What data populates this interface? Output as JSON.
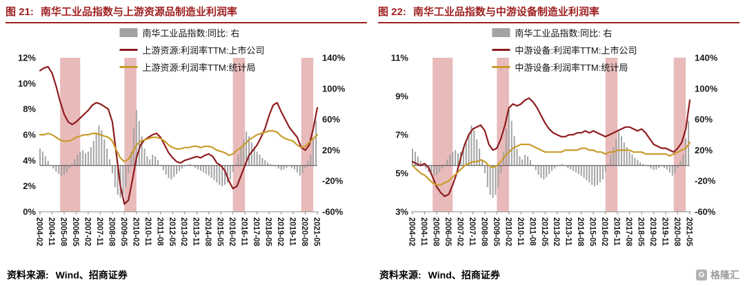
{
  "panels": [
    {
      "title_prefix": "图 21:",
      "title": "南华工业品指数与上游资源品制造业利润率",
      "source_label": "资料来源:",
      "source_text": "Wind、招商证券"
    },
    {
      "title_prefix": "图 22:",
      "title": "南华工业品指数与中游设备制造业利润率",
      "source_label": "资料来源:",
      "source_text": "Wind、招商证券"
    }
  ],
  "logo": {
    "text": "格隆汇",
    "letter": "G"
  },
  "colors": {
    "title_red": "#9e1f1f",
    "line_red": "#8e1b1e",
    "line_gold": "#c89b2a",
    "bars_gray": "#a3a3a3",
    "band_pink": "#e2a9a9",
    "axis_text": "#1a1a1a",
    "baseline": "#4a4a4a"
  },
  "shared_bars": {
    "label": "南华工业品指数:同比: 右",
    "axis": "right",
    "x_start": "2004-02",
    "step_months": 2,
    "values": [
      22,
      18,
      12,
      6,
      0,
      -4,
      -8,
      -11,
      -13,
      -12,
      -9,
      -4,
      2,
      8,
      14,
      18,
      20,
      16,
      18,
      24,
      32,
      42,
      52,
      46,
      34,
      22,
      8,
      -10,
      -28,
      -38,
      -42,
      -38,
      -28,
      -10,
      18,
      48,
      72,
      58,
      38,
      22,
      12,
      8,
      14,
      12,
      7,
      1,
      -6,
      -12,
      -16,
      -18,
      -15,
      -11,
      -7,
      -4,
      -1,
      1,
      2,
      0,
      -3,
      -5,
      -7,
      -9,
      -11,
      -13,
      -16,
      -19,
      -22,
      -25,
      -27,
      -25,
      -22,
      -18,
      -8,
      2,
      14,
      24,
      34,
      44,
      38,
      30,
      24,
      18,
      14,
      10,
      7,
      4,
      2,
      1,
      -1,
      -4,
      -6,
      -5,
      -3,
      -1,
      -3,
      -5,
      -9,
      -13,
      -10,
      -3,
      6,
      14,
      35,
      58
    ]
  },
  "chart_data": [
    {
      "type": "bar",
      "title": "南华工业品指数与上游资源品制造业利润率",
      "x_start": "2004-02",
      "x_end": "2021-05",
      "x_tick_labels": [
        "2004-02",
        "2004-11",
        "2005-08",
        "2006-05",
        "2007-02",
        "2007-11",
        "2008-08",
        "2009-05",
        "2010-02",
        "2010-11",
        "2011-08",
        "2012-05",
        "2013-02",
        "2013-11",
        "2014-08",
        "2015-05",
        "2016-02",
        "2016-11",
        "2017-08",
        "2018-05",
        "2019-02",
        "2019-11",
        "2020-08",
        "2021-05"
      ],
      "left_axis": {
        "min": 0,
        "max": 12,
        "tick_values": [
          12,
          10,
          8,
          6,
          4,
          2,
          0
        ],
        "tick_labels": [
          "12%",
          "10%",
          "8%",
          "6%",
          "4%",
          "2%",
          "0%"
        ]
      },
      "right_axis": {
        "min": -60,
        "max": 140,
        "tick_values": [
          140,
          100,
          60,
          20,
          -20,
          -60
        ],
        "tick_labels": [
          "140%",
          "100%",
          "60%",
          "20%",
          "-20%",
          "-60%"
        ]
      },
      "legend": [
        {
          "label": "南华工业品指数:同比: 右",
          "type": "bar",
          "color": "#a3a3a3"
        },
        {
          "label": "上游资源:利润率TTM:上市公司",
          "type": "line",
          "color": "#8e1b1e"
        },
        {
          "label": "上游资源:利润率TTM:统计局",
          "type": "line",
          "color": "#c89b2a"
        }
      ],
      "bands": [
        [
          "2005-05",
          "2006-08"
        ],
        [
          "2009-05",
          "2010-02"
        ],
        [
          "2016-02",
          "2016-11"
        ],
        [
          "2020-05",
          "2021-02"
        ]
      ],
      "bars_ref": "shared_bars",
      "series": [
        {
          "name": "上游资源:利润率TTM:上市公司",
          "axis": "left",
          "color": "#8e1b1e",
          "x_start": "2004-02",
          "step_months": 3,
          "values": [
            11.0,
            11.2,
            11.3,
            10.8,
            9.8,
            8.6,
            7.6,
            7.0,
            6.8,
            7.0,
            7.3,
            7.6,
            7.9,
            8.3,
            8.5,
            8.4,
            8.2,
            8.0,
            7.0,
            4.5,
            2.0,
            0.6,
            0.9,
            2.5,
            4.2,
            5.2,
            5.6,
            5.8,
            6.0,
            6.1,
            5.8,
            5.2,
            4.6,
            4.2,
            3.9,
            3.8,
            4.0,
            4.1,
            4.2,
            4.3,
            4.2,
            4.4,
            4.5,
            4.3,
            3.8,
            3.6,
            3.2,
            2.4,
            1.8,
            2.0,
            2.8,
            3.6,
            4.4,
            4.8,
            5.2,
            5.8,
            6.5,
            7.5,
            8.3,
            8.5,
            7.8,
            7.2,
            6.6,
            6.2,
            5.8,
            5.0,
            4.8,
            5.2,
            6.5,
            8.1
          ]
        },
        {
          "name": "上游资源:利润率TTM:统计局",
          "axis": "left",
          "color": "#c89b2a",
          "x_start": "2004-02",
          "step_months": 3,
          "values": [
            6.0,
            6.0,
            6.1,
            6.0,
            5.8,
            5.6,
            5.5,
            5.5,
            5.6,
            5.8,
            5.9,
            6.0,
            6.0,
            6.1,
            6.1,
            6.0,
            5.9,
            5.8,
            5.5,
            4.8,
            4.2,
            3.9,
            4.1,
            4.6,
            5.2,
            5.5,
            5.6,
            5.7,
            5.8,
            5.8,
            5.7,
            5.5,
            5.2,
            5.0,
            4.9,
            4.9,
            5.0,
            5.0,
            5.1,
            5.1,
            5.0,
            5.1,
            5.1,
            5.0,
            4.8,
            4.7,
            4.6,
            4.4,
            4.5,
            4.8,
            5.0,
            5.3,
            5.6,
            5.8,
            6.0,
            6.1,
            6.2,
            6.3,
            6.3,
            6.2,
            5.9,
            5.7,
            5.6,
            5.5,
            5.2,
            5.0,
            5.1,
            5.4,
            5.7,
            6.0
          ]
        }
      ]
    },
    {
      "type": "bar",
      "title": "南华工业品指数与中游设备制造业利润率",
      "x_start": "2004-02",
      "x_end": "2021-05",
      "x_tick_labels": [
        "2004-02",
        "2004-11",
        "2005-08",
        "2006-05",
        "2007-02",
        "2007-11",
        "2008-08",
        "2009-05",
        "2010-02",
        "2010-11",
        "2011-08",
        "2012-05",
        "2013-02",
        "2013-11",
        "2014-08",
        "2015-05",
        "2016-02",
        "2016-11",
        "2017-08",
        "2018-05",
        "2019-02",
        "2019-11",
        "2020-08",
        "2021-05"
      ],
      "left_axis": {
        "min": 3,
        "max": 11,
        "tick_values": [
          11,
          9,
          7,
          5,
          3
        ],
        "tick_labels": [
          "11%",
          "9%",
          "7%",
          "5%",
          "3%"
        ]
      },
      "right_axis": {
        "min": -60,
        "max": 140,
        "tick_values": [
          140,
          100,
          60,
          20,
          -20,
          -60
        ],
        "tick_labels": [
          "140%",
          "100%",
          "60%",
          "20%",
          "-20%",
          "-60%"
        ]
      },
      "legend": [
        {
          "label": "南华工业品指数:同比: 右",
          "type": "bar",
          "color": "#a3a3a3"
        },
        {
          "label": "中游设备:利润率TTM:上市公司",
          "type": "line",
          "color": "#8e1b1e"
        },
        {
          "label": "中游设备:利润率TTM:统计局",
          "type": "line",
          "color": "#c89b2a"
        }
      ],
      "bands": [
        [
          "2005-05",
          "2006-08"
        ],
        [
          "2009-05",
          "2010-02"
        ],
        [
          "2016-02",
          "2016-11"
        ],
        [
          "2020-05",
          "2021-02"
        ]
      ],
      "bars_ref": "shared_bars",
      "series": [
        {
          "name": "中游设备:利润率TTM:上市公司",
          "axis": "left",
          "color": "#8e1b1e",
          "x_start": "2004-02",
          "step_months": 3,
          "values": [
            5.6,
            5.5,
            5.4,
            5.5,
            5.3,
            4.8,
            4.3,
            4.0,
            3.8,
            3.9,
            4.4,
            5.0,
            5.8,
            6.5,
            7.0,
            7.3,
            7.4,
            7.5,
            7.2,
            6.5,
            6.2,
            6.3,
            6.8,
            7.5,
            8.4,
            8.6,
            8.5,
            8.6,
            8.8,
            8.9,
            8.7,
            8.4,
            8.0,
            7.6,
            7.3,
            7.1,
            7.0,
            6.9,
            6.9,
            7.0,
            7.0,
            7.1,
            7.1,
            7.2,
            7.1,
            7.2,
            7.1,
            7.0,
            6.9,
            7.0,
            7.1,
            7.2,
            7.3,
            7.4,
            7.4,
            7.3,
            7.2,
            7.3,
            7.1,
            6.8,
            6.5,
            6.4,
            6.3,
            6.3,
            6.2,
            6.1,
            6.3,
            6.6,
            7.3,
            8.8
          ]
        },
        {
          "name": "中游设备:利润率TTM:统计局",
          "axis": "left",
          "color": "#c89b2a",
          "x_start": "2004-02",
          "step_months": 3,
          "values": [
            5.4,
            5.2,
            5.0,
            4.9,
            4.7,
            4.5,
            4.4,
            4.4,
            4.5,
            4.6,
            4.8,
            5.0,
            5.2,
            5.4,
            5.5,
            5.6,
            5.6,
            5.7,
            5.6,
            5.4,
            5.3,
            5.4,
            5.6,
            5.9,
            6.1,
            6.3,
            6.4,
            6.5,
            6.5,
            6.5,
            6.4,
            6.3,
            6.2,
            6.1,
            6.1,
            6.1,
            6.1,
            6.1,
            6.2,
            6.2,
            6.2,
            6.2,
            6.3,
            6.3,
            6.2,
            6.2,
            6.1,
            6.1,
            6.0,
            6.1,
            6.1,
            6.2,
            6.2,
            6.2,
            6.2,
            6.1,
            6.1,
            6.1,
            6.0,
            6.0,
            6.0,
            6.0,
            6.0,
            6.0,
            5.9,
            6.0,
            6.1,
            6.2,
            6.3,
            6.6
          ]
        }
      ]
    }
  ]
}
